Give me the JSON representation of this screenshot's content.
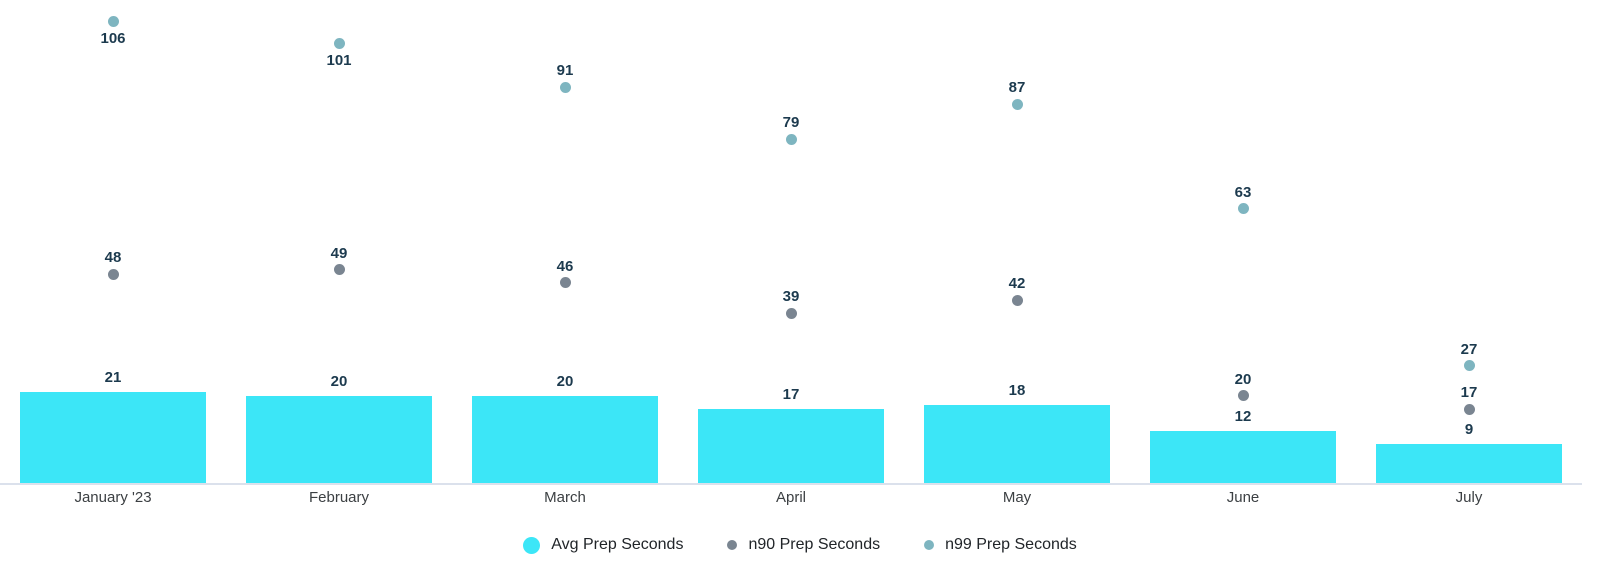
{
  "chart_data": {
    "type": "bar",
    "title": "",
    "xlabel": "",
    "ylabel": "",
    "categories": [
      "January '23",
      "February",
      "March",
      "April",
      "May",
      "June",
      "July"
    ],
    "series": [
      {
        "name": "Avg Prep Seconds",
        "kind": "bar",
        "color": "#3CE6F7",
        "values": [
          21,
          20,
          20,
          17,
          18,
          12,
          9
        ]
      },
      {
        "name": "n90 Prep Seconds",
        "kind": "point",
        "color": "#7A8591",
        "values": [
          48,
          49,
          46,
          39,
          42,
          20,
          17
        ]
      },
      {
        "name": "n99 Prep Seconds",
        "kind": "point",
        "color": "#7EB5C0",
        "values": [
          106,
          101,
          91,
          79,
          87,
          63,
          27
        ]
      }
    ],
    "ylim": [
      0,
      111
    ],
    "grid": false,
    "y_axis_visible": false,
    "value_labels": true,
    "legend_position": "bottom",
    "label_color": "#1C3A4E",
    "axis_label_color": "#3C4043",
    "axis_line_color": "#DBE1EC",
    "background_color": "#FFFFFF"
  }
}
